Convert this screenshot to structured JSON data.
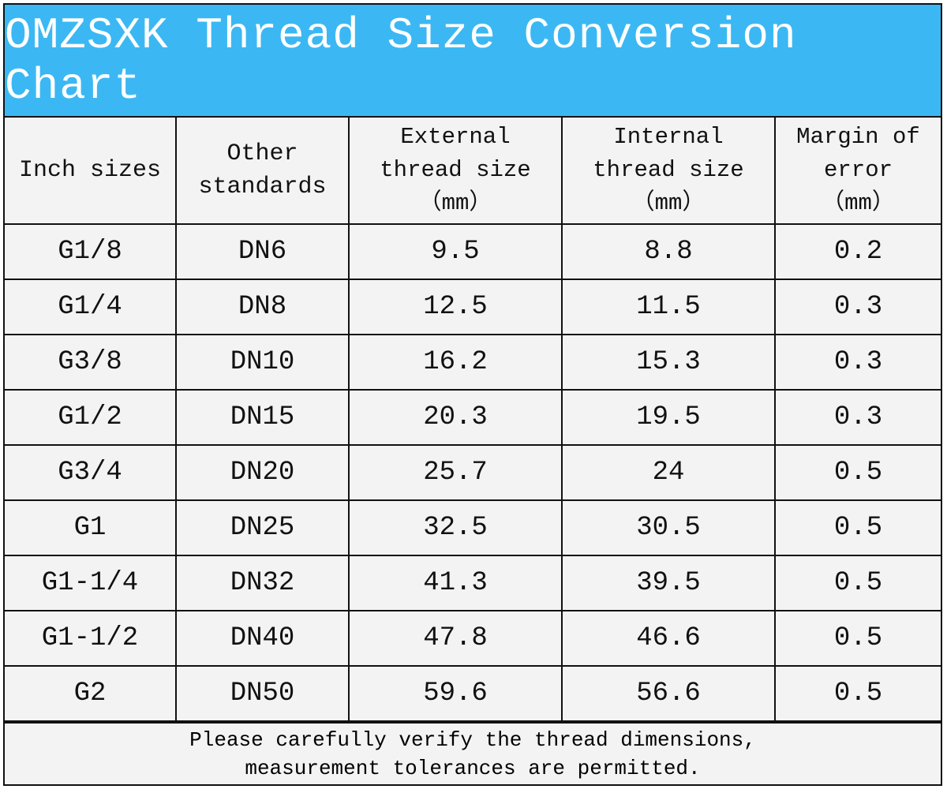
{
  "header": {
    "title": "OMZSXK Thread Size Conversion Chart"
  },
  "table": {
    "columns": [
      [
        "Inch sizes"
      ],
      [
        "Other",
        "standards"
      ],
      [
        "External",
        "thread size",
        "（mm）"
      ],
      [
        "Internal",
        "thread size",
        "（mm）"
      ],
      [
        "Margin of",
        "error",
        "（mm）"
      ]
    ],
    "rows": [
      [
        "G1/8",
        "DN6",
        "9.5",
        "8.8",
        "0.2"
      ],
      [
        "G1/4",
        "DN8",
        "12.5",
        "11.5",
        "0.3"
      ],
      [
        "G3/8",
        "DN10",
        "16.2",
        "15.3",
        "0.3"
      ],
      [
        "G1/2",
        "DN15",
        "20.3",
        "19.5",
        "0.3"
      ],
      [
        "G3/4",
        "DN20",
        "25.7",
        "24",
        "0.5"
      ],
      [
        "G1",
        "DN25",
        "32.5",
        "30.5",
        "0.5"
      ],
      [
        "G1-1/4",
        "DN32",
        "41.3",
        "39.5",
        "0.5"
      ],
      [
        "G1-1/2",
        "DN40",
        "47.8",
        "46.6",
        "0.5"
      ],
      [
        "G2",
        "DN50",
        "59.6",
        "56.6",
        "0.5"
      ]
    ]
  },
  "footer": {
    "lines": [
      "Please carefully verify the thread dimensions,",
      "measurement tolerances are permitted."
    ]
  }
}
